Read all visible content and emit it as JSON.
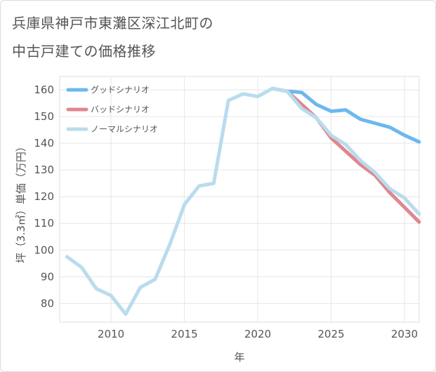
{
  "title_lines": [
    "兵庫県神戸市東灘区深江北町の",
    "中古戸建ての価格推移"
  ],
  "chart_data": {
    "type": "line",
    "title": "兵庫県神戸市東灘区深江北町の中古戸建ての価格推移",
    "xlabel": "年",
    "ylabel": "坪（3.3㎡）単価（万円）",
    "xlim": [
      2006.5,
      2031
    ],
    "ylim": [
      73,
      165
    ],
    "xticks": [
      2010,
      2015,
      2020,
      2025,
      2030
    ],
    "yticks": [
      80,
      90,
      100,
      110,
      120,
      130,
      140,
      150,
      160
    ],
    "grid": true,
    "legend_position": "top-left",
    "series": [
      {
        "name": "グッドシナリオ",
        "color": "#6cb8ee",
        "points": [
          [
            2021,
            160.5
          ],
          [
            2022,
            159.5
          ],
          [
            2023,
            159
          ],
          [
            2024,
            154.5
          ],
          [
            2025,
            152
          ],
          [
            2026,
            152.5
          ],
          [
            2027,
            149
          ],
          [
            2028,
            147.5
          ],
          [
            2029,
            146
          ],
          [
            2030,
            143
          ],
          [
            2031,
            140.5
          ]
        ]
      },
      {
        "name": "バッドシナリオ",
        "color": "#e0868f",
        "points": [
          [
            2021,
            160.5
          ],
          [
            2022,
            159.5
          ],
          [
            2023,
            154.5
          ],
          [
            2024,
            149.5
          ],
          [
            2025,
            142
          ],
          [
            2026,
            137
          ],
          [
            2027,
            132
          ],
          [
            2028,
            128
          ],
          [
            2029,
            121.5
          ],
          [
            2030,
            116
          ],
          [
            2031,
            110.5
          ]
        ]
      },
      {
        "name": "ノーマルシナリオ",
        "color": "#b9dced",
        "points": [
          [
            2007,
            97.5
          ],
          [
            2008,
            93.5
          ],
          [
            2009,
            85.5
          ],
          [
            2010,
            83
          ],
          [
            2011,
            76
          ],
          [
            2012,
            86
          ],
          [
            2013,
            89
          ],
          [
            2014,
            102
          ],
          [
            2015,
            117
          ],
          [
            2016,
            124
          ],
          [
            2017,
            125
          ],
          [
            2018,
            156
          ],
          [
            2019,
            158.5
          ],
          [
            2020,
            157.5
          ],
          [
            2021,
            160.5
          ],
          [
            2022,
            159.5
          ],
          [
            2023,
            153
          ],
          [
            2024,
            149.5
          ],
          [
            2025,
            143
          ],
          [
            2026,
            139.5
          ],
          [
            2027,
            133.5
          ],
          [
            2028,
            129
          ],
          [
            2029,
            123
          ],
          [
            2030,
            119.5
          ],
          [
            2031,
            113.5
          ]
        ]
      }
    ]
  }
}
